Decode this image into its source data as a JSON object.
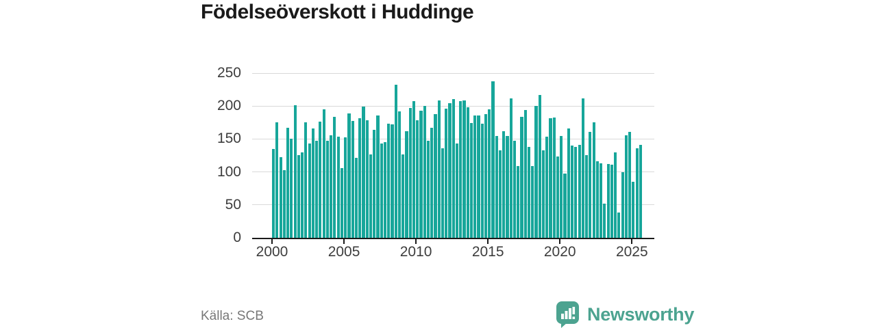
{
  "title": "Födelseöverskott i Huddinge",
  "source": "Källa: SCB",
  "brand": {
    "name": "Newsworthy",
    "color": "#4ca390"
  },
  "colors": {
    "bar": "#17a69a",
    "grid": "#d9d9d9",
    "axis": "#1a1a1a",
    "tick_text": "#3d3d3d",
    "title_text": "#1a1a1a",
    "source_text": "#777777"
  },
  "chart_data": {
    "type": "bar",
    "title": "Födelseöverskott i Huddinge",
    "period": "quarterly",
    "x_start": "2000 Q1",
    "x_end": "2025 Q3",
    "xlabel": "",
    "ylabel": "",
    "ylim": [
      0,
      250
    ],
    "y_ticks": [
      0,
      50,
      100,
      150,
      200,
      250
    ],
    "x_tick_labels": [
      "2000",
      "2005",
      "2010",
      "2015",
      "2020",
      "2025"
    ],
    "grid": "horizontal",
    "legend": "none",
    "values": [
      135,
      175,
      122,
      103,
      167,
      150,
      201,
      126,
      130,
      175,
      143,
      166,
      147,
      176,
      195,
      147,
      156,
      184,
      154,
      106,
      152,
      189,
      177,
      121,
      182,
      199,
      178,
      127,
      164,
      186,
      143,
      145,
      173,
      172,
      232,
      192,
      127,
      162,
      197,
      208,
      178,
      193,
      200,
      147,
      167,
      188,
      209,
      136,
      196,
      204,
      211,
      143,
      208,
      209,
      198,
      174,
      186,
      186,
      173,
      188,
      195,
      238,
      155,
      133,
      162,
      155,
      212,
      147,
      109,
      184,
      194,
      138,
      109,
      200,
      217,
      133,
      154,
      182,
      183,
      123,
      155,
      98,
      166,
      140,
      138,
      141,
      212,
      126,
      161,
      175,
      116,
      113,
      52,
      112,
      111,
      130,
      38,
      100,
      156,
      161,
      85,
      136,
      141
    ]
  }
}
